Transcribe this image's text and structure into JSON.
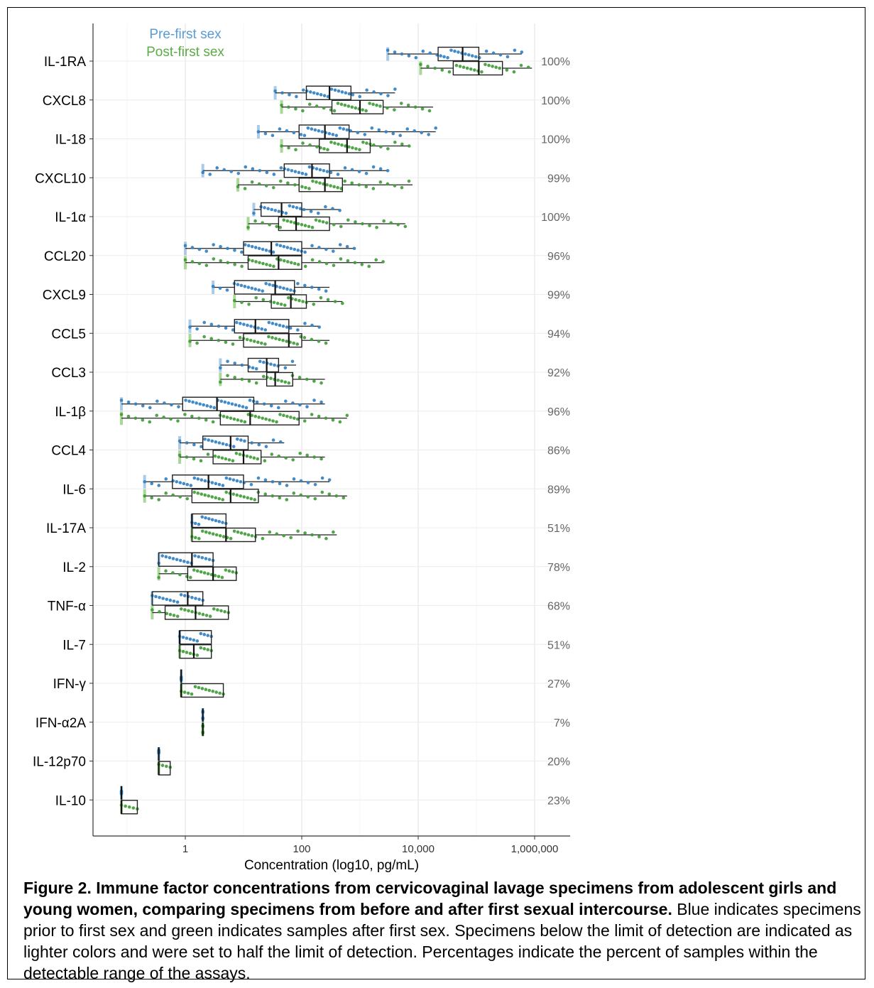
{
  "chart_data": {
    "type": "box",
    "xlabel": "Concentration (log10, pg/mL)",
    "ylabel": "",
    "xscale": "log10",
    "xlim": [
      0.07,
      2000000
    ],
    "xticks": [
      {
        "value": 1,
        "label": "1"
      },
      {
        "value": 100,
        "label": "100"
      },
      {
        "value": 10000,
        "label": "10,000"
      },
      {
        "value": 1000000,
        "label": "1,000,000"
      }
    ],
    "grid": true,
    "legend": {
      "position": "top-left",
      "entries": [
        {
          "name": "Pre-first sex",
          "color": "#5b9bd5"
        },
        {
          "name": "Post-first sex",
          "color": "#5aac44"
        }
      ]
    },
    "series_colors": {
      "pre": "#2e7ec3",
      "post": "#3d9b35",
      "pre_lod": "#a9cbe8",
      "post_lod": "#a8d896"
    },
    "factors": [
      {
        "name": "IL-1RA",
        "pct": "100%",
        "pre": {
          "min": 3000,
          "q1": 22000,
          "median": 58000,
          "q3": 110000,
          "max": 600000
        },
        "post": {
          "min": 11000,
          "q1": 40000,
          "median": 110000,
          "q3": 280000,
          "max": 900000
        }
      },
      {
        "name": "CXCL8",
        "pct": "100%",
        "pre": {
          "min": 35,
          "q1": 120,
          "median": 300,
          "q3": 700,
          "max": 4000
        },
        "post": {
          "min": 45,
          "q1": 330,
          "median": 1000,
          "q3": 2500,
          "max": 18000
        }
      },
      {
        "name": "IL-18",
        "pct": "100%",
        "pre": {
          "min": 18,
          "q1": 90,
          "median": 250,
          "q3": 650,
          "max": 20000
        },
        "post": {
          "min": 45,
          "q1": 200,
          "median": 600,
          "q3": 1500,
          "max": 7000
        }
      },
      {
        "name": "CXCL10",
        "pct": "99%",
        "pre": {
          "min": 2,
          "q1": 50,
          "median": 150,
          "q3": 300,
          "max": 3000
        },
        "post": {
          "min": 8,
          "q1": 90,
          "median": 250,
          "q3": 500,
          "max": 8000
        }
      },
      {
        "name": "IL-1α",
        "pct": "100%",
        "pre": {
          "min": 15,
          "q1": 20,
          "median": 45,
          "q3": 100,
          "max": 450
        },
        "post": {
          "min": 12,
          "q1": 40,
          "median": 80,
          "q3": 300,
          "max": 6000
        }
      },
      {
        "name": "CCL20",
        "pct": "96%",
        "pre": {
          "min": 1,
          "q1": 10,
          "median": 30,
          "q3": 100,
          "max": 800
        },
        "post": {
          "min": 1,
          "q1": 12,
          "median": 40,
          "q3": 100,
          "max": 2500
        }
      },
      {
        "name": "CXCL9",
        "pct": "99%",
        "pre": {
          "min": 3,
          "q1": 7,
          "median": 35,
          "q3": 75,
          "max": 300
        },
        "post": {
          "min": 7,
          "q1": 30,
          "median": 65,
          "q3": 120,
          "max": 500
        }
      },
      {
        "name": "CCL5",
        "pct": "94%",
        "pre": {
          "min": 1.2,
          "q1": 7,
          "median": 16,
          "q3": 60,
          "max": 200
        },
        "post": {
          "min": 1.2,
          "q1": 10,
          "median": 60,
          "q3": 100,
          "max": 300
        }
      },
      {
        "name": "CCL3",
        "pct": "92%",
        "pre": {
          "min": 4,
          "q1": 12,
          "median": 25,
          "q3": 40,
          "max": 80
        },
        "post": {
          "min": 4,
          "q1": 25,
          "median": 35,
          "q3": 70,
          "max": 250
        }
      },
      {
        "name": "IL-1β",
        "pct": "96%",
        "pre": {
          "min": 0.08,
          "q1": 0.9,
          "median": 3.5,
          "q3": 15,
          "max": 250
        },
        "post": {
          "min": 0.08,
          "q1": 4,
          "median": 13,
          "q3": 90,
          "max": 600
        }
      },
      {
        "name": "CCL4",
        "pct": "86%",
        "pre": {
          "min": 0.8,
          "q1": 2,
          "median": 6,
          "q3": 12,
          "max": 50
        },
        "post": {
          "min": 0.8,
          "q1": 3,
          "median": 10,
          "q3": 20,
          "max": 250
        }
      },
      {
        "name": "IL-6",
        "pct": "89%",
        "pre": {
          "min": 0.2,
          "q1": 0.6,
          "median": 2.5,
          "q3": 10,
          "max": 300
        },
        "post": {
          "min": 0.2,
          "q1": 1.3,
          "median": 6,
          "q3": 18,
          "max": 600
        }
      },
      {
        "name": "IL-17A",
        "pct": "51%",
        "pre": {
          "min": 1.3,
          "q1": 1.3,
          "median": 1.3,
          "q3": 5,
          "max": 5
        },
        "post": {
          "min": 1.3,
          "q1": 1.3,
          "median": 5,
          "q3": 16,
          "max": 400
        }
      },
      {
        "name": "IL-2",
        "pct": "78%",
        "pre": {
          "min": 0.35,
          "q1": 0.35,
          "median": 1.3,
          "q3": 3,
          "max": 3
        },
        "post": {
          "min": 0.35,
          "q1": 1.1,
          "median": 3,
          "q3": 7.5,
          "max": 7.5
        }
      },
      {
        "name": "TNF-α",
        "pct": "68%",
        "pre": {
          "min": 0.27,
          "q1": 0.27,
          "median": 1.1,
          "q3": 2,
          "max": 2
        },
        "post": {
          "min": 0.27,
          "q1": 0.45,
          "median": 1.5,
          "q3": 5.5,
          "max": 5.5
        }
      },
      {
        "name": "IL-7",
        "pct": "51%",
        "pre": {
          "min": 0.8,
          "q1": 0.8,
          "median": 0.8,
          "q3": 2.8,
          "max": 2.8
        },
        "post": {
          "min": 0.8,
          "q1": 0.8,
          "median": 1.4,
          "q3": 2.8,
          "max": 2.8
        }
      },
      {
        "name": "IFN-γ",
        "pct": "27%",
        "pre": {
          "min": 0.85,
          "q1": 0.85,
          "median": 0.85,
          "q3": 0.85,
          "max": 0.85
        },
        "post": {
          "min": 0.85,
          "q1": 0.85,
          "median": 0.85,
          "q3": 4.5,
          "max": 4.5
        }
      },
      {
        "name": "IFN-α2A",
        "pct": "7%",
        "pre": {
          "min": 2,
          "q1": 2,
          "median": 2,
          "q3": 2,
          "max": 2
        },
        "post": {
          "min": 2,
          "q1": 2,
          "median": 2,
          "q3": 2,
          "max": 2
        }
      },
      {
        "name": "IL-12p70",
        "pct": "20%",
        "pre": {
          "min": 0.35,
          "q1": 0.35,
          "median": 0.35,
          "q3": 0.35,
          "max": 0.35
        },
        "post": {
          "min": 0.35,
          "q1": 0.35,
          "median": 0.35,
          "q3": 0.55,
          "max": 0.55
        }
      },
      {
        "name": "IL-10",
        "pct": "23%",
        "pre": {
          "min": 0.08,
          "q1": 0.08,
          "median": 0.08,
          "q3": 0.08,
          "max": 0.08
        },
        "post": {
          "min": 0.08,
          "q1": 0.08,
          "median": 0.08,
          "q3": 0.15,
          "max": 0.15
        }
      }
    ]
  },
  "caption": {
    "bold": "Figure 2. Immune factor concentrations from cervicovaginal lavage specimens from adolescent girls and young women, comparing specimens from before and after first sexual intercourse.",
    "text": " Blue indicates specimens prior to first sex and green indicates samples after first sex. Specimens below the limit of detection are indicated as lighter colors and were set to half the limit of detection. Percentages indicate the percent of samples within the detectable range of the assays."
  }
}
